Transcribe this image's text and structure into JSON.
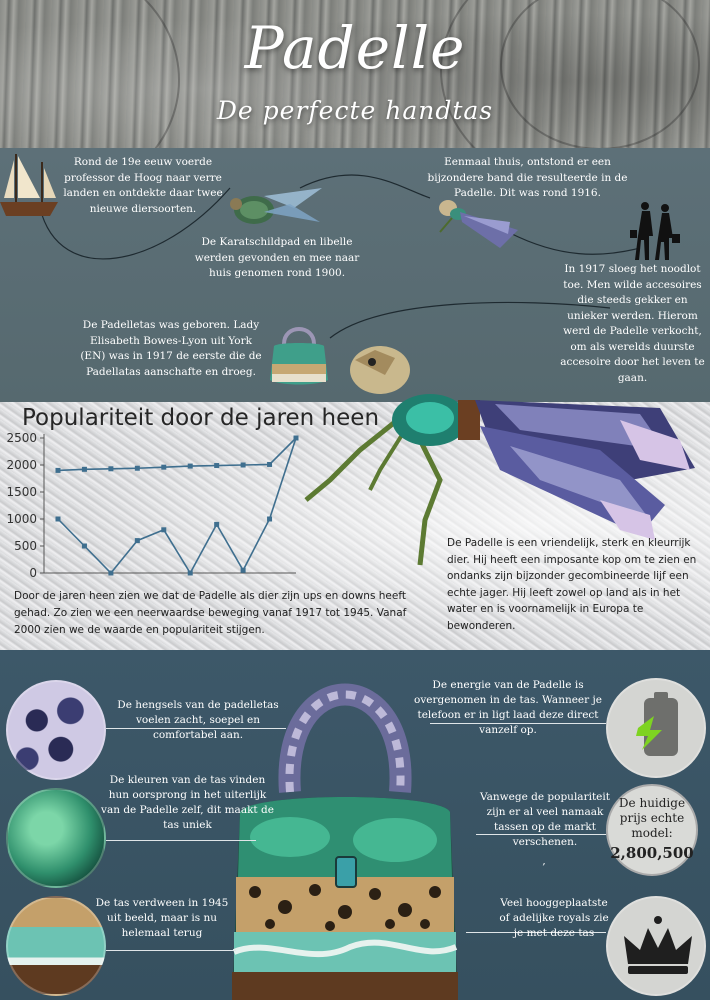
{
  "header": {
    "title": "Padelle",
    "subtitle": "De perfecte handtas"
  },
  "story": {
    "ship_text": "Rond de 19e eeuw voerde professor de Hoog naar verre landen en ontdekte daar twee nieuwe diersoorten.",
    "discovery_text": "De Karatschildpad en libelle werden gevonden en mee naar huis genomen rond 1900.",
    "home_text": "Eenmaal thuis, ontstond er een bijzondere band die resulteerde in de Padelle. Dit was rond 1916.",
    "fashion_text": "In 1917 sloeg het noodlot toe. Men wilde accesoires die steeds gekker en unieker werden. Hierom werd de Padelle verkocht, om als werelds duurste accesoire door het leven te gaan.",
    "bag_born_text": "De Padelletas was geboren. Lady Elisabeth Bowes-Lyon uit York (EN) was in 1917 de eerste die de Padellatas aanschafte en droeg."
  },
  "popularity": {
    "description": "Door de jaren heen zien we dat de Padelle als dier zijn ups en downs heeft gehad. Zo zien we een neerwaardse beweging vanaf 1917 tot 1945. Vanaf 2000 zien we de waarde en populariteit stijgen.",
    "padelle_description": "De Padelle is een vriendelijk, sterk en kleurrijk dier. Hij heeft een imposante kop om te zien en ondanks zijn bijzonder gecombineerde lijf een echte jager. Hij leeft zowel op land als in het water en is voornamelijk in Europa te bewonderen."
  },
  "chart_data": {
    "type": "line",
    "title": "Populariteit door de jaren heen",
    "xlabel": "",
    "ylabel": "",
    "ylim": [
      0,
      2500
    ],
    "yticks": [
      "0",
      "500",
      "1000",
      "1500",
      "2000",
      "2500"
    ],
    "series": [
      {
        "values": [
          1900,
          1920,
          1930,
          1940,
          1960,
          1980,
          1990,
          2000,
          2010,
          2500
        ]
      },
      {
        "values": [
          1000,
          500,
          0,
          600,
          800,
          0,
          900,
          50,
          1000,
          2500
        ]
      }
    ],
    "colors": {
      "line": "#3f6f8f",
      "marker": "#3f6f8f",
      "axis": "#555555"
    }
  },
  "bag": {
    "handles_text": "De hengsels van de padelletas voelen zacht, soepel en comfortabel aan.",
    "colors_text": "De kleuren van de tas vinden hun oorsprong in het uiterlijk van de Padelle zelf, dit maakt de tas uniek",
    "history_text": "De tas verdween in 1945 uit beeld, maar is nu helemaal terug",
    "energy_text": "De energie van de Padelle is overgenomen in de tas. Wanneer je telefoon er in ligt laad deze direct vanzelf op.",
    "fakes_text": "Vanwege de populariteit zijn er al veel namaak tassen op de markt verschenen.",
    "fakes_mark": ",",
    "royals_text": "Veel hooggeplaatste of adelijke royals zie je met deze tas",
    "price_label": "De huidige prijs echte model:",
    "price_value": "2,800,500"
  },
  "icons": {
    "ship": "ship-icon",
    "turtle": "turtle-icon",
    "dragonfly": "dragonfly-icon",
    "shoppers": "shoppers-icon",
    "battery": "battery-charging-icon",
    "crown": "crown-icon"
  }
}
